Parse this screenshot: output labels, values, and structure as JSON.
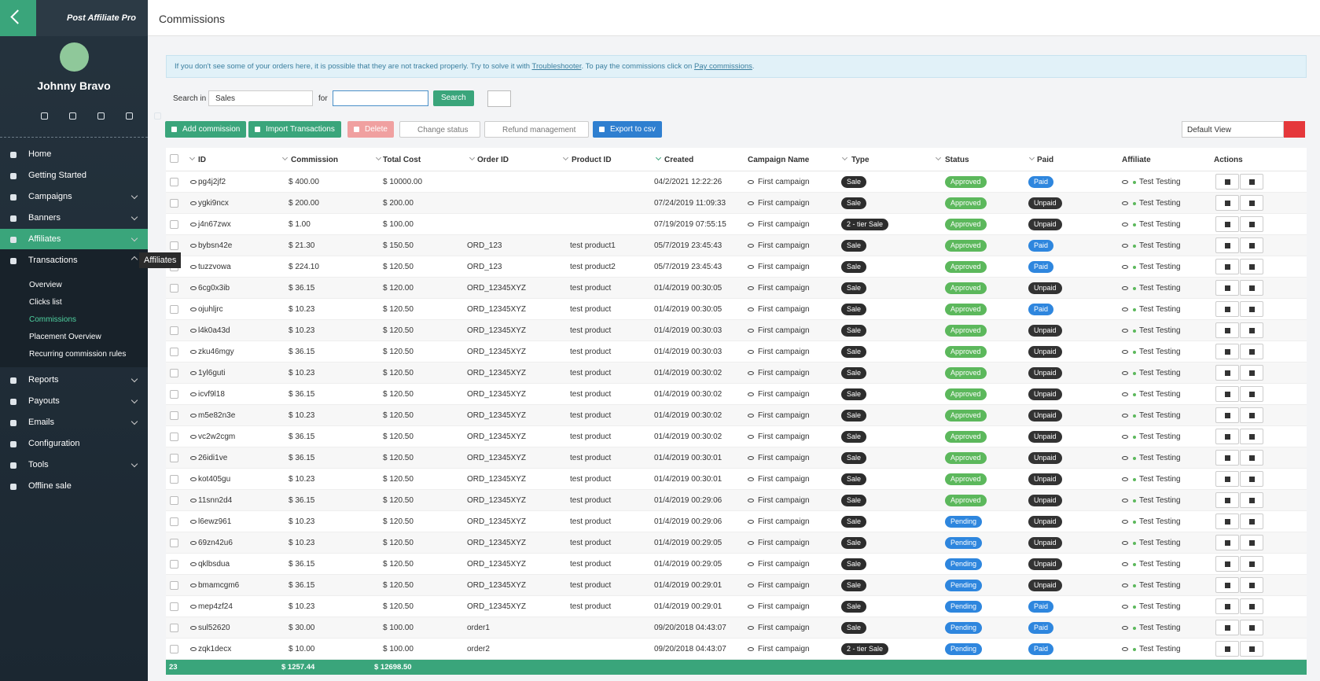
{
  "sidebar": {
    "logo": "Post Affiliate Pro",
    "user": "Johnny Bravo",
    "menu": [
      "Home",
      "Getting Started",
      "Campaigns",
      "Banners",
      "Affiliates",
      "Transactions"
    ],
    "submenu": [
      "Overview",
      "Clicks list",
      "Commissions",
      "Placement Overview",
      "Recurring commission rules"
    ],
    "menu2": [
      "Reports",
      "Payouts",
      "Emails",
      "Configuration",
      "Tools",
      "Offline sale"
    ],
    "tooltip": "Affiliates"
  },
  "header": {
    "title": "Commissions"
  },
  "info": {
    "parts": [
      "If you don't see some of your orders here, it is possible that they are not tracked properly. Try to solve it with ",
      "Troubleshooter",
      ". To pay the commissions click on ",
      "Pay commissions",
      "."
    ]
  },
  "search": {
    "label": "Search in",
    "select": "Sales",
    "for": "for",
    "button": "Search"
  },
  "toolbar": {
    "add": "Add commission",
    "import": "Import Transactions",
    "delete": "Delete",
    "change": "Change status",
    "refund": "Refund management",
    "export": "Export to csv",
    "view": "Default View"
  },
  "table": {
    "columns": [
      "ID",
      "Commission",
      "Total Cost",
      "Order ID",
      "Product ID",
      "Created",
      "Campaign Name",
      "Type",
      "Status",
      "Paid",
      "Affiliate",
      "Actions"
    ],
    "status_colors": {
      "Approved": "#5cb85c",
      "Pending": "#2e86de"
    },
    "paid_colors": {
      "Paid": "#2e86de",
      "Unpaid": "#333333"
    },
    "rows": [
      [
        "pg4j2jf2",
        "$ 400.00",
        "$ 10000.00",
        null,
        null,
        "04/2/2021 12:22:26",
        "First campaign",
        "Sale",
        "Approved",
        "Paid",
        "Test Testing"
      ],
      [
        "ygki9ncx",
        "$ 200.00",
        "$ 200.00",
        null,
        null,
        "07/24/2019 11:09:33",
        "First campaign",
        "Sale",
        "Approved",
        "Unpaid",
        "Test Testing"
      ],
      [
        "j4n67zwx",
        "$ 1.00",
        "$ 100.00",
        null,
        null,
        "07/19/2019 07:55:15",
        "First campaign",
        "2 - tier Sale",
        "Approved",
        "Unpaid",
        "Test Testing"
      ],
      [
        "bybsn42e",
        "$ 21.30",
        "$ 150.50",
        "ORD_123",
        "test product1",
        "05/7/2019 23:45:43",
        "First campaign",
        "Sale",
        "Approved",
        "Paid",
        "Test Testing"
      ],
      [
        "tuzzvowa",
        "$ 224.10",
        "$ 120.50",
        "ORD_123",
        "test product2",
        "05/7/2019 23:45:43",
        "First campaign",
        "Sale",
        "Approved",
        "Paid",
        "Test Testing"
      ],
      [
        "6cg0x3ib",
        "$ 36.15",
        "$ 120.00",
        "ORD_12345XYZ",
        "test product",
        "01/4/2019 00:30:05",
        "First campaign",
        "Sale",
        "Approved",
        "Unpaid",
        "Test Testing"
      ],
      [
        "ojuhljrc",
        "$ 10.23",
        "$ 120.50",
        "ORD_12345XYZ",
        "test product",
        "01/4/2019 00:30:05",
        "First campaign",
        "Sale",
        "Approved",
        "Paid",
        "Test Testing"
      ],
      [
        "l4k0a43d",
        "$ 10.23",
        "$ 120.50",
        "ORD_12345XYZ",
        "test product",
        "01/4/2019 00:30:03",
        "First campaign",
        "Sale",
        "Approved",
        "Unpaid",
        "Test Testing"
      ],
      [
        "zku46mgy",
        "$ 36.15",
        "$ 120.50",
        "ORD_12345XYZ",
        "test product",
        "01/4/2019 00:30:03",
        "First campaign",
        "Sale",
        "Approved",
        "Unpaid",
        "Test Testing"
      ],
      [
        "1yl6guti",
        "$ 10.23",
        "$ 120.50",
        "ORD_12345XYZ",
        "test product",
        "01/4/2019 00:30:02",
        "First campaign",
        "Sale",
        "Approved",
        "Unpaid",
        "Test Testing"
      ],
      [
        "icvf9l18",
        "$ 36.15",
        "$ 120.50",
        "ORD_12345XYZ",
        "test product",
        "01/4/2019 00:30:02",
        "First campaign",
        "Sale",
        "Approved",
        "Unpaid",
        "Test Testing"
      ],
      [
        "m5e82n3e",
        "$ 10.23",
        "$ 120.50",
        "ORD_12345XYZ",
        "test product",
        "01/4/2019 00:30:02",
        "First campaign",
        "Sale",
        "Approved",
        "Unpaid",
        "Test Testing"
      ],
      [
        "vc2w2cgm",
        "$ 36.15",
        "$ 120.50",
        "ORD_12345XYZ",
        "test product",
        "01/4/2019 00:30:02",
        "First campaign",
        "Sale",
        "Approved",
        "Unpaid",
        "Test Testing"
      ],
      [
        "26idi1ve",
        "$ 36.15",
        "$ 120.50",
        "ORD_12345XYZ",
        "test product",
        "01/4/2019 00:30:01",
        "First campaign",
        "Sale",
        "Approved",
        "Unpaid",
        "Test Testing"
      ],
      [
        "kot405gu",
        "$ 10.23",
        "$ 120.50",
        "ORD_12345XYZ",
        "test product",
        "01/4/2019 00:30:01",
        "First campaign",
        "Sale",
        "Approved",
        "Unpaid",
        "Test Testing"
      ],
      [
        "11snn2d4",
        "$ 36.15",
        "$ 120.50",
        "ORD_12345XYZ",
        "test product",
        "01/4/2019 00:29:06",
        "First campaign",
        "Sale",
        "Approved",
        "Unpaid",
        "Test Testing"
      ],
      [
        "l6ewz961",
        "$ 10.23",
        "$ 120.50",
        "ORD_12345XYZ",
        "test product",
        "01/4/2019 00:29:06",
        "First campaign",
        "Sale",
        "Pending",
        "Unpaid",
        "Test Testing"
      ],
      [
        "69zn42u6",
        "$ 10.23",
        "$ 120.50",
        "ORD_12345XYZ",
        "test product",
        "01/4/2019 00:29:05",
        "First campaign",
        "Sale",
        "Pending",
        "Unpaid",
        "Test Testing"
      ],
      [
        "qklbsdua",
        "$ 36.15",
        "$ 120.50",
        "ORD_12345XYZ",
        "test product",
        "01/4/2019 00:29:05",
        "First campaign",
        "Sale",
        "Pending",
        "Unpaid",
        "Test Testing"
      ],
      [
        "bmamcgm6",
        "$ 36.15",
        "$ 120.50",
        "ORD_12345XYZ",
        "test product",
        "01/4/2019 00:29:01",
        "First campaign",
        "Sale",
        "Pending",
        "Unpaid",
        "Test Testing"
      ],
      [
        "mep4zf24",
        "$ 10.23",
        "$ 120.50",
        "ORD_12345XYZ",
        "test product",
        "01/4/2019 00:29:01",
        "First campaign",
        "Sale",
        "Pending",
        "Paid",
        "Test Testing"
      ],
      [
        "sul52620",
        "$ 30.00",
        "$ 100.00",
        "order1",
        null,
        "09/20/2018 04:43:07",
        "First campaign",
        "Sale",
        "Pending",
        "Paid",
        "Test Testing"
      ],
      [
        "zqk1decx",
        "$ 10.00",
        "$ 100.00",
        "order2",
        null,
        "09/20/2018 04:43:07",
        "First campaign",
        "2 - tier Sale",
        "Pending",
        "Paid",
        "Test Testing"
      ]
    ],
    "footer": {
      "count": "23",
      "commission": "$ 1257.44",
      "total_cost": "$ 12698.50"
    }
  }
}
